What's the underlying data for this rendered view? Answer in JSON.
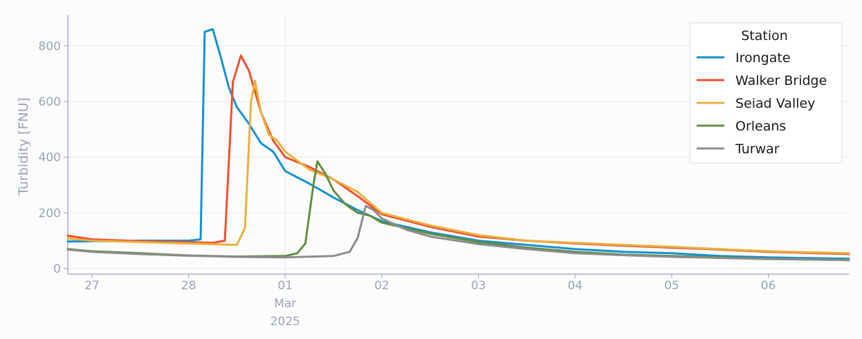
{
  "chart_data": {
    "type": "line",
    "title": "",
    "xlabel": "",
    "ylabel": "Turbidity [FNU]",
    "y_ticks": [
      0,
      200,
      400,
      600,
      800
    ],
    "ylim": [
      -20,
      910
    ],
    "x_ticks": [
      {
        "x": "2025-02-27",
        "label": "27"
      },
      {
        "x": "2025-02-28",
        "label": "28"
      },
      {
        "x": "2025-03-01",
        "label": "01",
        "sub1": "Mar",
        "sub2": "2025"
      },
      {
        "x": "2025-03-02",
        "label": "02"
      },
      {
        "x": "2025-03-03",
        "label": "03"
      },
      {
        "x": "2025-03-04",
        "label": "04"
      },
      {
        "x": "2025-03-05",
        "label": "05"
      },
      {
        "x": "2025-03-06",
        "label": "06"
      }
    ],
    "xlim": [
      "2025-02-26T18:00",
      "2025-03-06T20:00"
    ],
    "grid": true,
    "legend": {
      "title": "Station",
      "position": "top-right"
    },
    "series": [
      {
        "name": "Irongate",
        "color": "#1490d0",
        "x": [
          "2025-02-26T18:00",
          "2025-02-27T00:00",
          "2025-02-27T12:00",
          "2025-02-28T00:00",
          "2025-02-28T03:00",
          "2025-02-28T04:00",
          "2025-02-28T06:00",
          "2025-02-28T08:00",
          "2025-02-28T10:00",
          "2025-02-28T12:00",
          "2025-02-28T15:00",
          "2025-02-28T18:00",
          "2025-02-28T21:00",
          "2025-03-01T00:00",
          "2025-03-01T06:00",
          "2025-03-01T12:00",
          "2025-03-01T18:00",
          "2025-03-02T00:00",
          "2025-03-02T12:00",
          "2025-03-03T00:00",
          "2025-03-03T12:00",
          "2025-03-04T00:00",
          "2025-03-04T12:00",
          "2025-03-05T00:00",
          "2025-03-05T12:00",
          "2025-03-06T00:00",
          "2025-03-06T20:00"
        ],
        "y": [
          97,
          98,
          100,
          100,
          105,
          850,
          860,
          760,
          650,
          580,
          520,
          450,
          420,
          350,
          305,
          255,
          210,
          170,
          130,
          100,
          85,
          70,
          60,
          55,
          45,
          40,
          35
        ]
      },
      {
        "name": "Walker Bridge",
        "color": "#f24e2e",
        "x": [
          "2025-02-26T18:00",
          "2025-02-27T00:00",
          "2025-02-27T12:00",
          "2025-02-28T00:00",
          "2025-02-28T06:00",
          "2025-02-28T09:00",
          "2025-02-28T11:00",
          "2025-02-28T13:00",
          "2025-02-28T15:00",
          "2025-02-28T18:00",
          "2025-02-28T21:00",
          "2025-03-01T00:00",
          "2025-03-01T06:00",
          "2025-03-01T12:00",
          "2025-03-01T18:00",
          "2025-03-02T00:00",
          "2025-03-02T12:00",
          "2025-03-03T00:00",
          "2025-03-03T12:00",
          "2025-03-04T00:00",
          "2025-03-04T12:00",
          "2025-03-05T00:00",
          "2025-03-05T12:00",
          "2025-03-06T00:00",
          "2025-03-06T20:00"
        ],
        "y": [
          118,
          105,
          98,
          95,
          92,
          100,
          670,
          765,
          710,
          560,
          460,
          400,
          365,
          320,
          260,
          195,
          150,
          115,
          100,
          90,
          82,
          75,
          68,
          60,
          52
        ]
      },
      {
        "name": "Seiad Valley",
        "color": "#e8b13f",
        "x": [
          "2025-02-26T18:00",
          "2025-02-27T00:00",
          "2025-02-27T12:00",
          "2025-02-28T00:00",
          "2025-02-28T12:00",
          "2025-02-28T14:00",
          "2025-02-28T15:30",
          "2025-02-28T16:30",
          "2025-02-28T18:00",
          "2025-02-28T20:00",
          "2025-02-28T22:00",
          "2025-03-01T00:00",
          "2025-03-01T06:00",
          "2025-03-01T12:00",
          "2025-03-01T18:00",
          "2025-03-02T00:00",
          "2025-03-02T12:00",
          "2025-03-03T00:00",
          "2025-03-03T12:00",
          "2025-03-04T00:00",
          "2025-03-04T12:00",
          "2025-03-05T00:00",
          "2025-03-05T12:00",
          "2025-03-06T00:00",
          "2025-03-06T20:00"
        ],
        "y": [
          108,
          100,
          95,
          90,
          85,
          145,
          600,
          675,
          560,
          480,
          460,
          420,
          355,
          320,
          275,
          200,
          155,
          120,
          100,
          92,
          85,
          78,
          70,
          62,
          55
        ]
      },
      {
        "name": "Orleans",
        "color": "#5f8f3e",
        "x": [
          "2025-02-26T18:00",
          "2025-02-27T00:00",
          "2025-02-27T12:00",
          "2025-02-28T00:00",
          "2025-02-28T12:00",
          "2025-03-01T00:00",
          "2025-03-01T03:00",
          "2025-03-01T05:00",
          "2025-03-01T07:00",
          "2025-03-01T08:00",
          "2025-03-01T10:00",
          "2025-03-01T12:00",
          "2025-03-01T15:00",
          "2025-03-01T18:00",
          "2025-03-01T21:00",
          "2025-03-02T00:00",
          "2025-03-02T12:00",
          "2025-03-03T00:00",
          "2025-03-03T12:00",
          "2025-03-04T00:00",
          "2025-03-04T12:00",
          "2025-03-05T00:00",
          "2025-03-05T12:00",
          "2025-03-06T00:00",
          "2025-03-06T20:00"
        ],
        "y": [
          70,
          62,
          55,
          47,
          43,
          45,
          55,
          90,
          300,
          385,
          340,
          280,
          230,
          200,
          190,
          165,
          125,
          95,
          75,
          60,
          50,
          45,
          40,
          35,
          30
        ]
      },
      {
        "name": "Turwar",
        "color": "#8c8c8c",
        "x": [
          "2025-02-26T18:00",
          "2025-02-27T00:00",
          "2025-02-27T12:00",
          "2025-02-28T00:00",
          "2025-02-28T12:00",
          "2025-03-01T00:00",
          "2025-03-01T12:00",
          "2025-03-01T16:00",
          "2025-03-01T18:00",
          "2025-03-01T20:00",
          "2025-03-01T22:00",
          "2025-03-02T00:00",
          "2025-03-02T06:00",
          "2025-03-02T12:00",
          "2025-03-03T00:00",
          "2025-03-03T12:00",
          "2025-03-04T00:00",
          "2025-03-04T12:00",
          "2025-03-05T00:00",
          "2025-03-05T12:00",
          "2025-03-06T00:00",
          "2025-03-06T20:00"
        ],
        "y": [
          68,
          60,
          52,
          46,
          42,
          40,
          45,
          60,
          110,
          225,
          210,
          180,
          140,
          115,
          88,
          70,
          55,
          48,
          42,
          38,
          34,
          30
        ]
      }
    ]
  }
}
